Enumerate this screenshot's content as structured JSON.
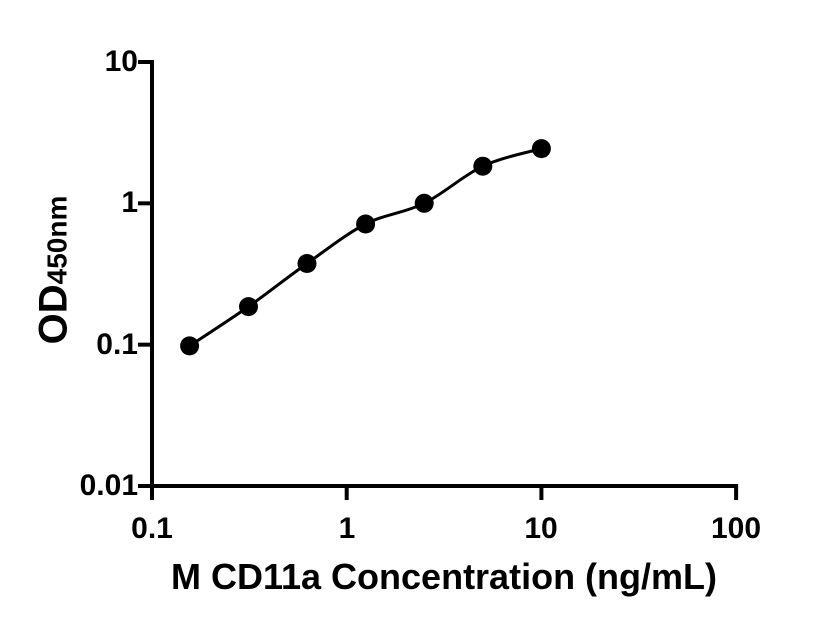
{
  "figure": {
    "background_color": "#ffffff",
    "axis_color": "#000000",
    "curve_color": "#000000",
    "point_color": "#000000"
  },
  "chart_data": {
    "type": "scatter",
    "x_scale": "log10",
    "y_scale": "log10",
    "title": "",
    "xlabel": "M CD11a Concentration (ng/mL)",
    "ylabel": "OD",
    "ylabel_sub": "450nm",
    "xlim": [
      0.1,
      100
    ],
    "ylim": [
      0.01,
      10
    ],
    "x_ticks": [
      0.1,
      1,
      10,
      100
    ],
    "x_tick_labels": [
      "0.1",
      "1",
      "10",
      "100"
    ],
    "y_ticks": [
      0.01,
      0.1,
      1,
      10
    ],
    "y_tick_labels": [
      "0.01",
      "0.1",
      "1",
      "10"
    ],
    "grid": false,
    "legend": "none",
    "series": [
      {
        "marker": "filled-circle",
        "line": "smooth-fit-curve",
        "x": [
          0.156,
          0.313,
          0.625,
          1.25,
          2.5,
          5,
          10
        ],
        "y": [
          0.098,
          0.186,
          0.375,
          0.714,
          1.0,
          1.83,
          2.44
        ]
      }
    ]
  }
}
